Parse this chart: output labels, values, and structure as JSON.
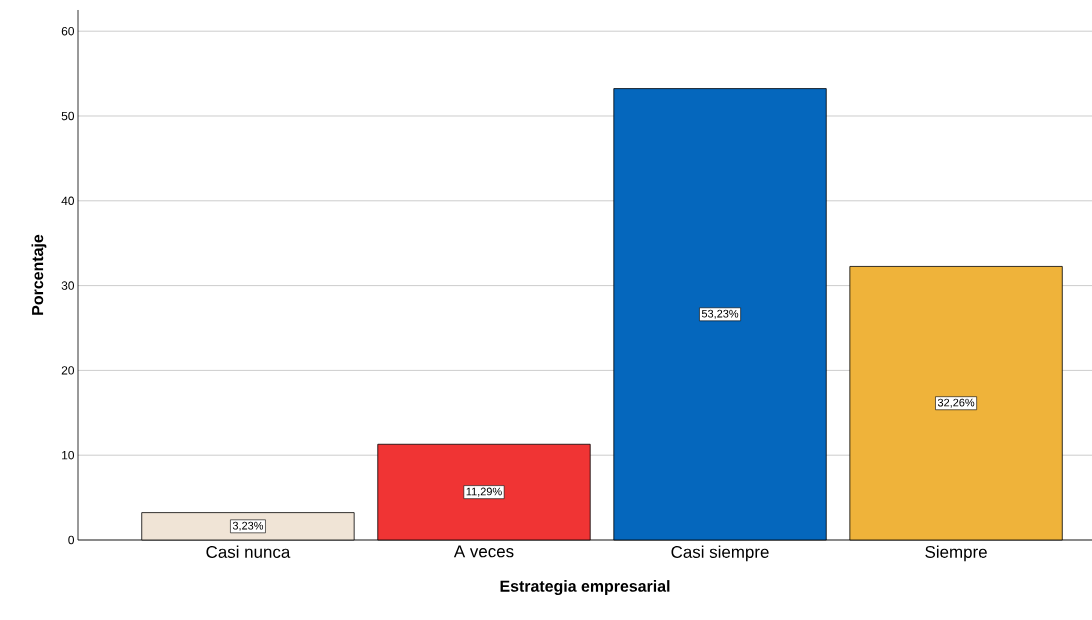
{
  "chart_data": {
    "type": "bar",
    "xlabel": "Estrategia empresarial",
    "ylabel": "Porcentaje",
    "categories": [
      "Casi nunca",
      "A veces",
      "Casi siempre",
      "Siempre"
    ],
    "values": [
      3.23,
      11.29,
      53.23,
      32.26
    ],
    "colors": [
      "#f0e4d6",
      "#f03434",
      "#0567bd",
      "#efb33a"
    ],
    "value_labels": [
      "3,23%",
      "11,29%",
      "53,23%",
      "32,26%"
    ],
    "ylim": [
      0,
      62.5
    ],
    "yticks": [
      0,
      10,
      20,
      30,
      40,
      50,
      60
    ],
    "grid": "y"
  }
}
